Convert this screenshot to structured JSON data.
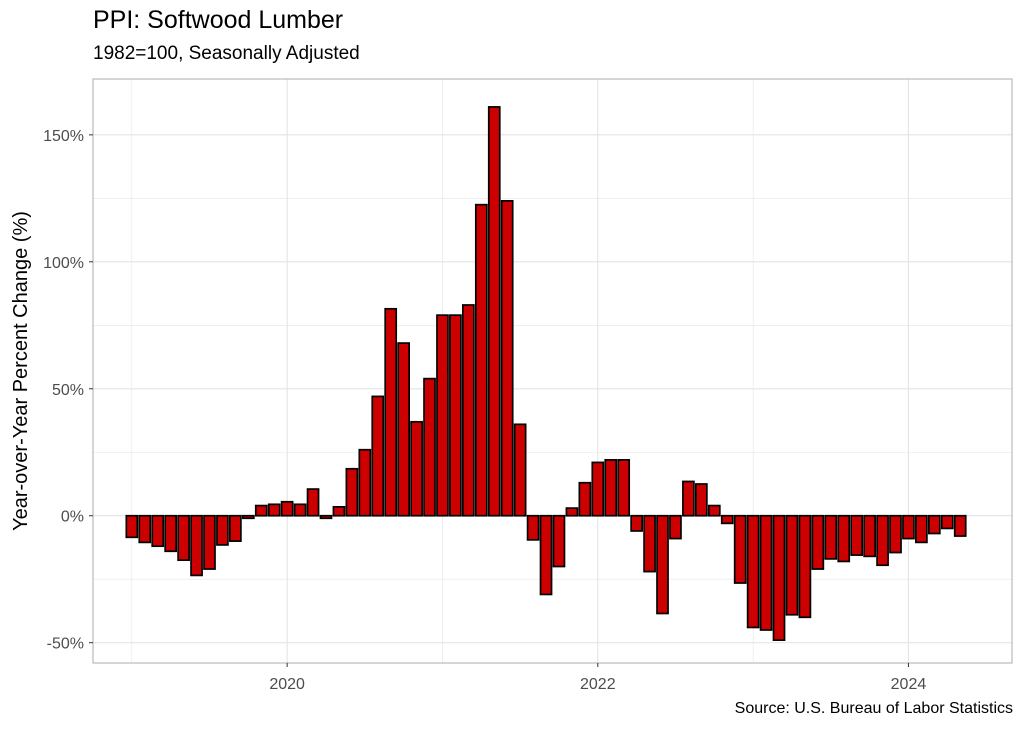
{
  "chart_data": {
    "type": "bar",
    "title": "PPI: Softwood Lumber",
    "subtitle": "1982=100, Seasonally Adjusted",
    "caption": "Source: U.S. Bureau of Labor Statistics",
    "ylabel": "Year-over-Year Percent Change (%)",
    "xlabel": "",
    "x_tick_labels": [
      "2020",
      "2022",
      "2024"
    ],
    "y_tick_labels": [
      "150%",
      "100%",
      "50%",
      "0%",
      "-50%"
    ],
    "y_ticks": [
      150,
      100,
      50,
      0,
      -50
    ],
    "ylim": [
      -58,
      172
    ],
    "xlim": [
      "2018-10",
      "2024-09"
    ],
    "grid": true,
    "colors": {
      "bar_fill": "#cc0000",
      "bar_stroke": "#000000",
      "grid": "#e4e4e4",
      "panel_border": "#b3b3b3",
      "tick_text": "#4d4d4d"
    },
    "months": [
      "2019-01",
      "2019-02",
      "2019-03",
      "2019-04",
      "2019-05",
      "2019-06",
      "2019-07",
      "2019-08",
      "2019-09",
      "2019-10",
      "2019-11",
      "2019-12",
      "2020-01",
      "2020-02",
      "2020-03",
      "2020-04",
      "2020-05",
      "2020-06",
      "2020-07",
      "2020-08",
      "2020-09",
      "2020-10",
      "2020-11",
      "2020-12",
      "2021-01",
      "2021-02",
      "2021-03",
      "2021-04",
      "2021-05",
      "2021-06",
      "2021-07",
      "2021-08",
      "2021-09",
      "2021-10",
      "2021-11",
      "2021-12",
      "2022-01",
      "2022-02",
      "2022-03",
      "2022-04",
      "2022-05",
      "2022-06",
      "2022-07",
      "2022-08",
      "2022-09",
      "2022-10",
      "2022-11",
      "2022-12",
      "2023-01",
      "2023-02",
      "2023-03",
      "2023-04",
      "2023-05",
      "2023-06",
      "2023-07",
      "2023-08",
      "2023-09",
      "2023-10",
      "2023-11",
      "2023-12",
      "2024-01",
      "2024-02",
      "2024-03",
      "2024-04",
      "2024-05"
    ],
    "values": [
      -8.5,
      -10.5,
      -12,
      -14,
      -17.5,
      -23.5,
      -21,
      -11.5,
      -10,
      -1,
      4,
      4.5,
      5.5,
      4.5,
      10.5,
      -1,
      3.5,
      18.5,
      26,
      47,
      81.5,
      68,
      37,
      54,
      79,
      79,
      83,
      122.5,
      161,
      124,
      36,
      -9.5,
      -31,
      -20,
      3,
      13,
      21,
      22,
      22,
      -6,
      -22,
      -38.5,
      -9,
      13.5,
      12.5,
      4,
      -3,
      -26.5,
      -44,
      -45,
      -49,
      -39,
      -40,
      -21,
      -17,
      -18,
      -15.5,
      -16,
      -19.5,
      -14.5,
      -9,
      -10.5,
      -7,
      -5,
      -8
    ]
  }
}
